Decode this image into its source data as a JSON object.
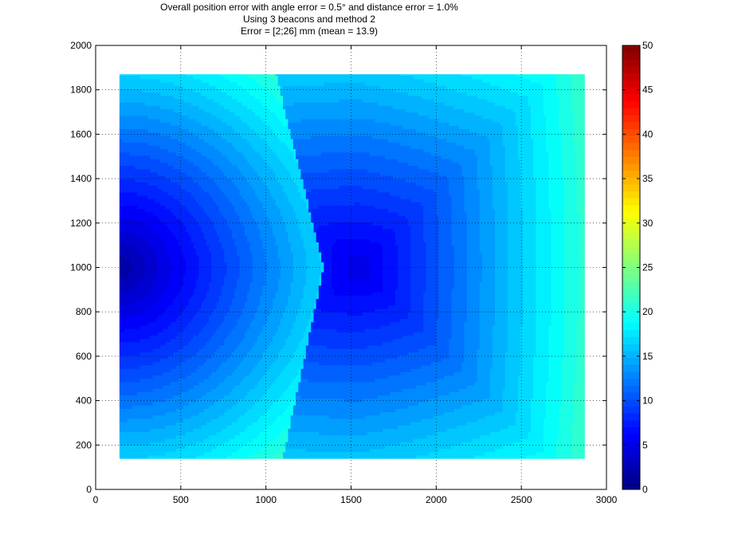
{
  "title_lines": [
    "Overall position error with angle error = 0.5° and distance error = 1.0%",
    "Using 3 beacons and method 2",
    "Error = [2;26] mm (mean = 13.9)"
  ],
  "chart_data": {
    "type": "heatmap",
    "title": "Overall position error with angle error = 0.5° and distance error = 1.0%\nUsing 3 beacons and method 2\nError = [2;26] mm (mean = 13.9)",
    "subtitle": "",
    "xlabel": "",
    "ylabel": "",
    "xlim": [
      0,
      3000
    ],
    "ylim": [
      0,
      2000
    ],
    "xticks": [
      0,
      500,
      1000,
      1500,
      2000,
      2500,
      3000
    ],
    "yticks": [
      0,
      200,
      400,
      600,
      800,
      1000,
      1200,
      1400,
      1600,
      1800,
      2000
    ],
    "grid": true,
    "colormap": "jet",
    "clim": [
      0,
      50
    ],
    "colorbar_ticks": [
      0,
      5,
      10,
      15,
      20,
      25,
      30,
      35,
      40,
      45,
      50
    ],
    "data_extent": {
      "x": [
        140,
        2870
      ],
      "y": [
        140,
        1870
      ]
    },
    "error_range_mm": [
      2,
      26
    ],
    "mean_error_mm": 13.9,
    "discontinuity_x_at_y": [
      {
        "y": 140,
        "x": 1100
      },
      {
        "y": 1000,
        "x": 1340
      },
      {
        "y": 1870,
        "x": 1060
      }
    ],
    "sample_values": [
      {
        "x": 140,
        "y": 1000,
        "error": 2
      },
      {
        "x": 600,
        "y": 1000,
        "error": 9
      },
      {
        "x": 1000,
        "y": 1000,
        "error": 14
      },
      {
        "x": 1300,
        "y": 1000,
        "error": 17
      },
      {
        "x": 1400,
        "y": 1000,
        "error": 6
      },
      {
        "x": 1550,
        "y": 1000,
        "error": 5
      },
      {
        "x": 2000,
        "y": 1000,
        "error": 10
      },
      {
        "x": 2500,
        "y": 1000,
        "error": 15
      },
      {
        "x": 2870,
        "y": 1000,
        "error": 19
      },
      {
        "x": 140,
        "y": 1870,
        "error": 8
      },
      {
        "x": 1000,
        "y": 1870,
        "error": 17
      },
      {
        "x": 2870,
        "y": 1870,
        "error": 26
      },
      {
        "x": 140,
        "y": 140,
        "error": 8
      },
      {
        "x": 2870,
        "y": 140,
        "error": 26
      }
    ]
  }
}
